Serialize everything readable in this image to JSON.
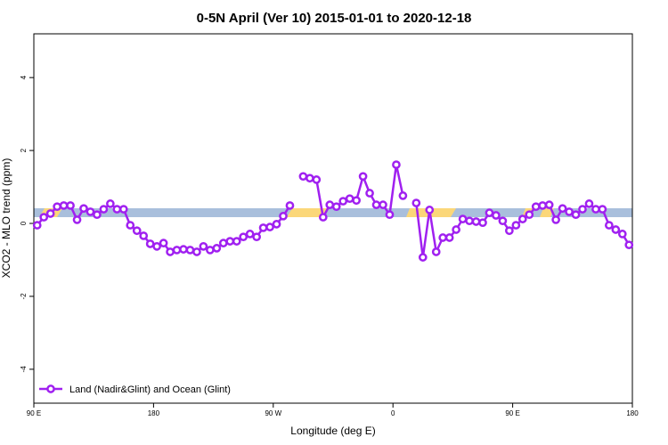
{
  "chart_data": {
    "type": "line",
    "title": "0-5N April (Ver 10)   2015-01-01 to 2020-12-18",
    "xlabel": "Longitude (deg E)",
    "ylabel": "XCO2 - MLO trend (ppm)",
    "xlim": [
      90,
      540
    ],
    "xticks": [
      {
        "value": 90,
        "label": "90 E"
      },
      {
        "value": 180,
        "label": "180"
      },
      {
        "value": 270,
        "label": "90 W"
      },
      {
        "value": 360,
        "label": "0"
      },
      {
        "value": 450,
        "label": "90 E"
      },
      {
        "value": 540,
        "label": "180"
      }
    ],
    "ylim": [
      -4.93,
      5.2
    ],
    "yticks": [
      -4,
      -2,
      0,
      2,
      4
    ],
    "legend": "bottomleft",
    "x": [
      92.5,
      97.5,
      102.5,
      107.5,
      112.5,
      117.5,
      122.5,
      127.5,
      132.5,
      137.5,
      142.5,
      147.5,
      152.5,
      157.5,
      162.5,
      167.5,
      172.5,
      177.5,
      182.5,
      187.5,
      192.5,
      197.5,
      202.5,
      207.5,
      212.5,
      217.5,
      222.5,
      227.5,
      232.5,
      237.5,
      242.5,
      247.5,
      252.5,
      257.5,
      262.5,
      267.5,
      272.5,
      277.5,
      282.5,
      287.5,
      292.5,
      297.5,
      302.5,
      307.5,
      312.5,
      317.5,
      322.5,
      327.5,
      332.5,
      337.5,
      342.5,
      347.5,
      352.5,
      357.5,
      362.5,
      367.5,
      372.5,
      377.5,
      382.5,
      387.5,
      392.5,
      397.5,
      402.5,
      407.5,
      412.5,
      417.5,
      422.5,
      427.5,
      432.5,
      437.5,
      442.5,
      447.5,
      452.5,
      457.5,
      462.5,
      467.5,
      472.5,
      477.5,
      482.5,
      487.5,
      492.5,
      497.5,
      502.5,
      507.5,
      512.5,
      517.5,
      522.5,
      527.5,
      532.5,
      537.5
    ],
    "series": [
      {
        "name": "Land (Nadir&Glint) and Ocean (Glint)",
        "color": "#a020f0",
        "values": [
          -0.05,
          0.17,
          0.27,
          0.46,
          0.49,
          0.49,
          0.1,
          0.41,
          0.32,
          0.24,
          0.39,
          0.54,
          0.39,
          0.39,
          -0.05,
          -0.2,
          -0.34,
          -0.56,
          -0.63,
          -0.54,
          -0.78,
          -0.73,
          -0.71,
          -0.73,
          -0.78,
          -0.63,
          -0.73,
          -0.68,
          -0.54,
          -0.49,
          -0.49,
          -0.37,
          -0.29,
          -0.37,
          -0.12,
          -0.1,
          -0.02,
          0.2,
          0.49,
          null,
          1.29,
          1.24,
          1.2,
          0.17,
          0.51,
          0.46,
          0.61,
          0.68,
          0.63,
          1.29,
          0.83,
          0.51,
          0.51,
          0.24,
          1.61,
          0.76,
          null,
          0.56,
          -0.93,
          0.37,
          -0.78,
          -0.39,
          -0.39,
          -0.17,
          0.12,
          0.07,
          0.05,
          0.02,
          0.29,
          0.22,
          0.07,
          -0.2,
          -0.05,
          0.12,
          0.24,
          0.46,
          0.49,
          0.51,
          0.1,
          0.41,
          0.32,
          0.24,
          0.39,
          0.54,
          0.39,
          0.39,
          -0.05,
          -0.17,
          -0.29,
          -0.59
        ]
      }
    ]
  }
}
